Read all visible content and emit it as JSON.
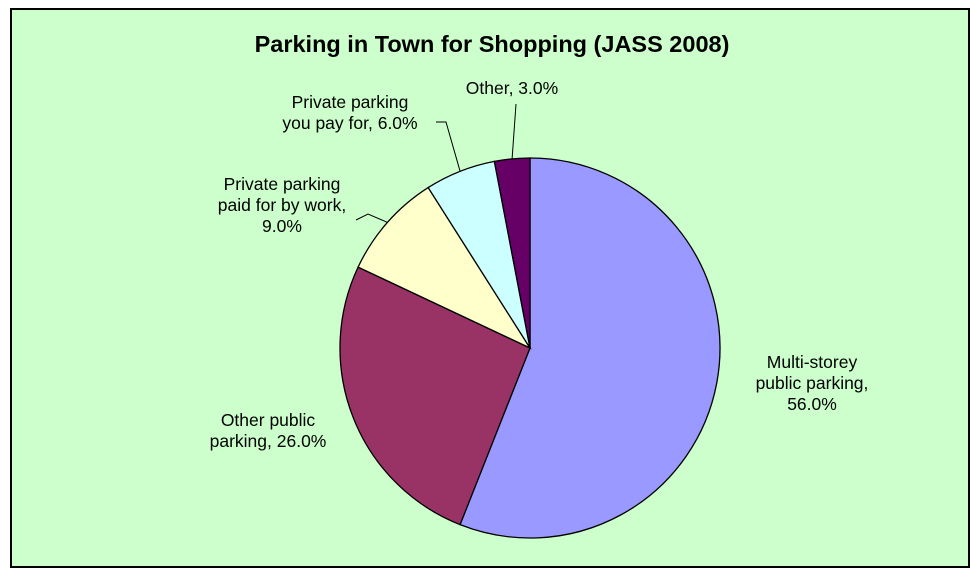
{
  "chart_data": {
    "type": "pie",
    "title": "Parking in Town for Shopping (JASS 2008)",
    "slices": [
      {
        "label": "Multi-storey public parking",
        "value": 56.0,
        "display": "56.0%",
        "color": "#9999ff"
      },
      {
        "label": "Other public parking",
        "value": 26.0,
        "display": "26.0%",
        "color": "#993366"
      },
      {
        "label": "Private parking paid for by work",
        "value": 9.0,
        "display": "9.0%",
        "color": "#ffffcc"
      },
      {
        "label": "Private parking you pay for",
        "value": 6.0,
        "display": "6.0%",
        "color": "#ccffff"
      },
      {
        "label": "Other",
        "value": 3.0,
        "display": "3.0%",
        "color": "#660066"
      }
    ],
    "label_lines": [
      [
        "Multi-storey",
        "public parking,",
        "56.0%"
      ],
      [
        "Other public",
        "parking, 26.0%"
      ],
      [
        "Private parking",
        "paid for by work,",
        "9.0%"
      ],
      [
        "Private parking",
        "you pay for, 6.0%"
      ],
      [
        "Other, 3.0%"
      ]
    ],
    "background": "#ccffcc",
    "legend": "none"
  }
}
